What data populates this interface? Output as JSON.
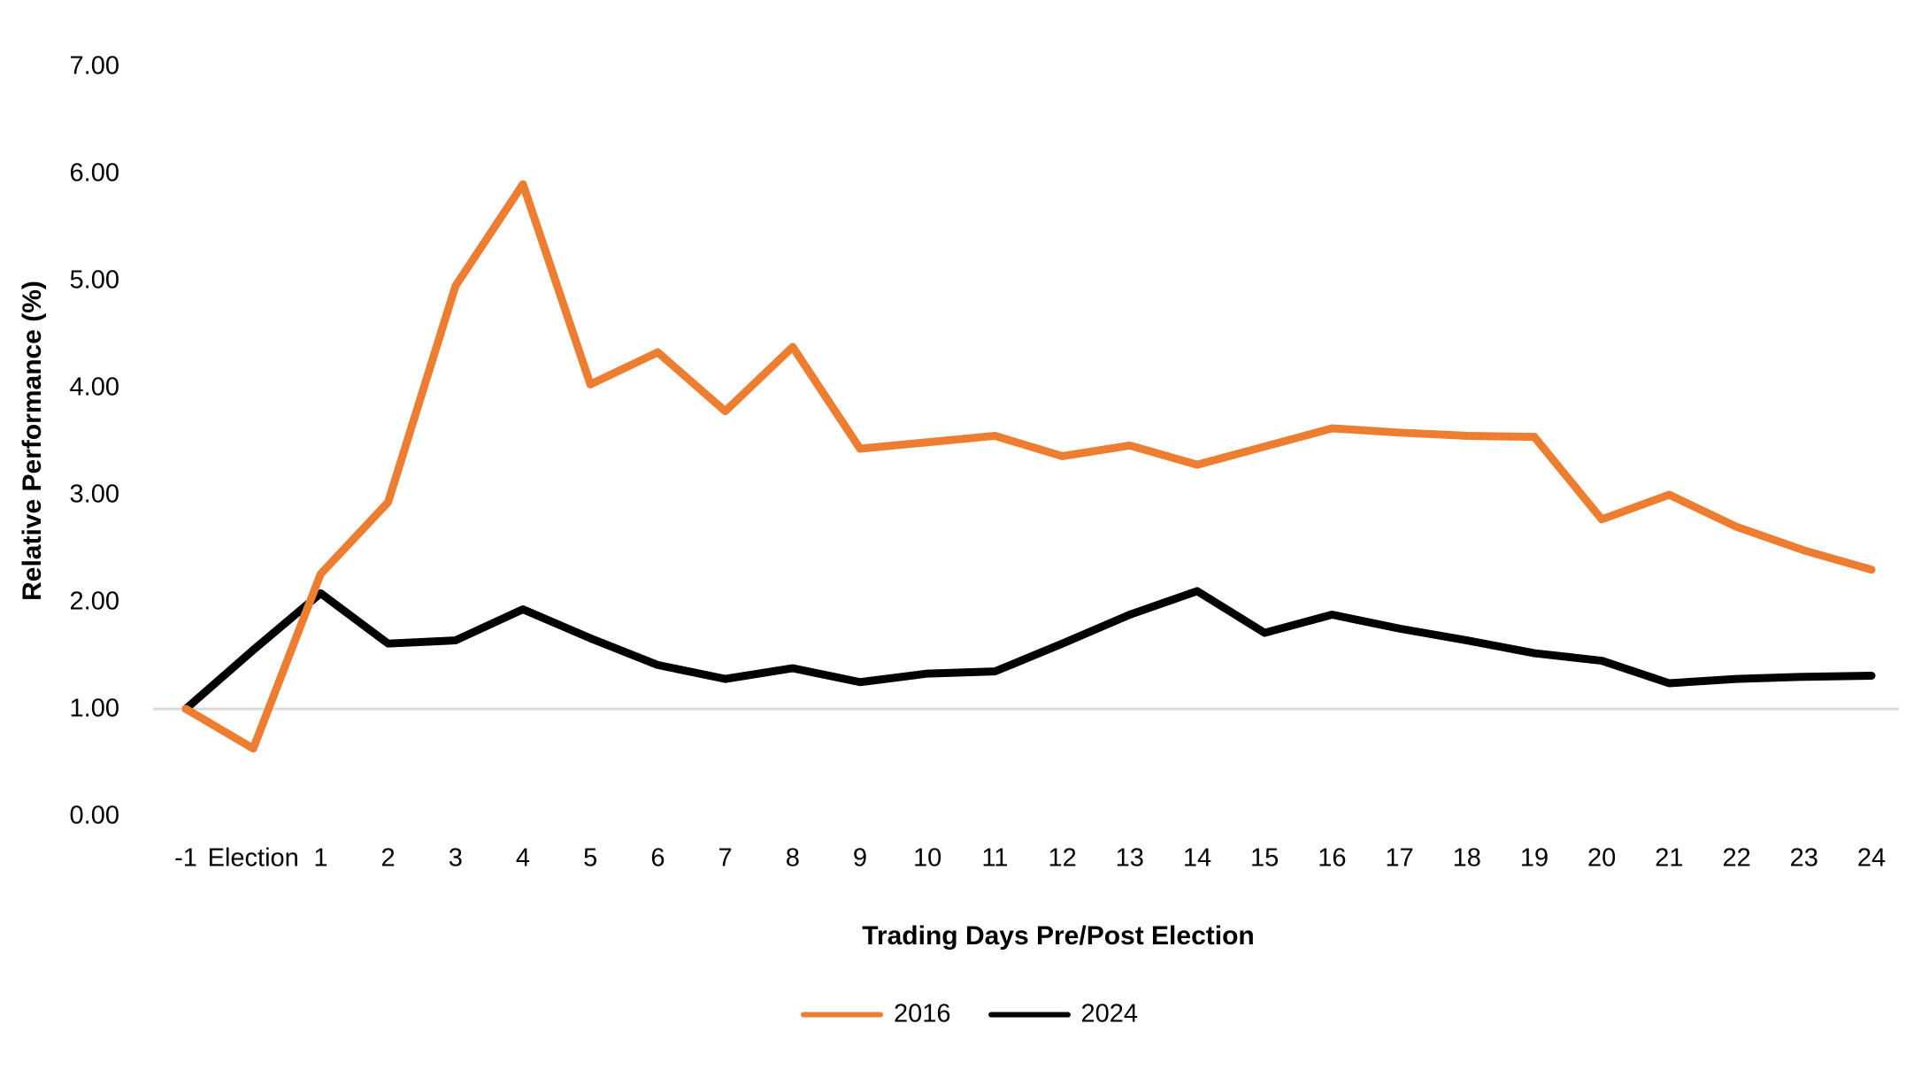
{
  "chart_data": {
    "type": "line",
    "title": "",
    "xlabel": "Trading Days Pre/Post Election",
    "ylabel": "Relative Performance (%)",
    "categories": [
      "-1",
      "Election",
      "1",
      "2",
      "3",
      "4",
      "5",
      "6",
      "7",
      "8",
      "9",
      "10",
      "11",
      "12",
      "13",
      "14",
      "15",
      "16",
      "17",
      "18",
      "19",
      "20",
      "21",
      "22",
      "23",
      "24"
    ],
    "series": [
      {
        "name": "2016",
        "color": "#ED7D31",
        "values": [
          1.0,
          0.63,
          2.26,
          2.93,
          4.95,
          5.9,
          4.03,
          4.33,
          3.78,
          4.38,
          3.43,
          3.49,
          3.55,
          3.36,
          3.46,
          3.28,
          3.45,
          3.62,
          3.58,
          3.55,
          3.54,
          2.77,
          3.0,
          2.7,
          2.48,
          2.3
        ]
      },
      {
        "name": "2024",
        "color": "#000000",
        "values": [
          1.0,
          1.55,
          2.08,
          1.61,
          1.64,
          1.93,
          1.66,
          1.41,
          1.28,
          1.38,
          1.25,
          1.33,
          1.35,
          1.61,
          1.88,
          2.1,
          1.71,
          1.88,
          1.75,
          1.64,
          1.52,
          1.45,
          1.24,
          1.28,
          1.3,
          1.31
        ]
      }
    ],
    "ylim": [
      0,
      7
    ],
    "ytick_labels": [
      "0.00",
      "1.00",
      "2.00",
      "3.00",
      "4.00",
      "5.00",
      "6.00",
      "7.00"
    ],
    "gridline": {
      "value": 1.0,
      "color": "#D9D9D9"
    },
    "grid": "single horizontal gridline at 1.00 only",
    "legend_position": "bottom",
    "background_color": "#FFFFFF",
    "line_width": 9
  }
}
